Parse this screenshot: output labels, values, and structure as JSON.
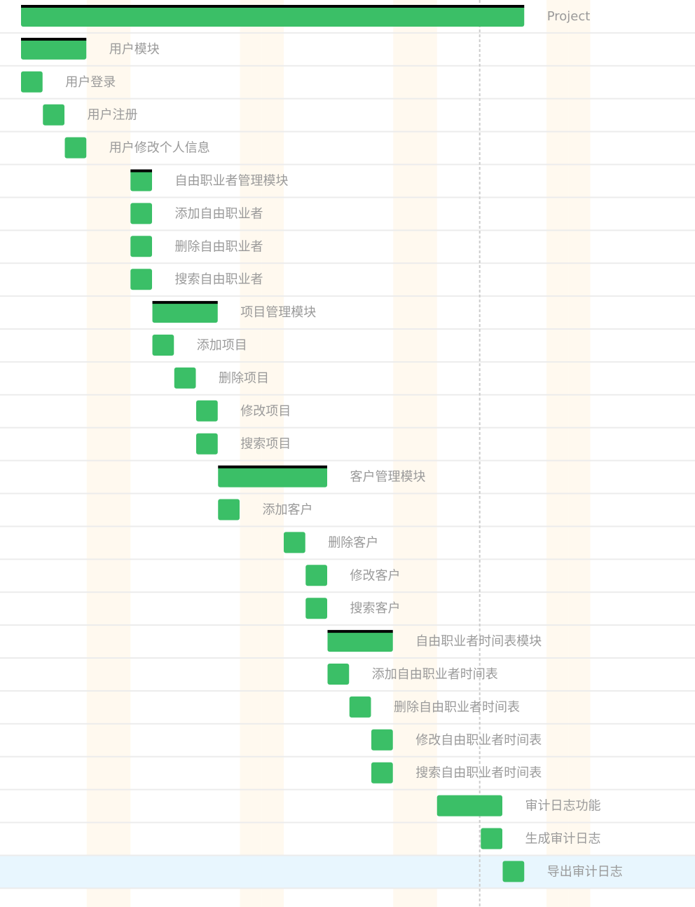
{
  "chart_data": {
    "type": "gantt",
    "time_unit": "day",
    "weekend_day_indices": [
      3,
      4,
      10,
      11,
      17,
      18,
      24,
      25
    ],
    "today_day_index": 20.95,
    "selected_task": "导出审计日志",
    "colors": {
      "bar": "#3bbf67",
      "progress_top": "#000000",
      "weekend": "#fff9ef",
      "selected_row": "#e8f6fe",
      "row_line": "#ececec",
      "today_line": "#cccccc",
      "label": "#9a9a9a"
    },
    "tasks": [
      {
        "name": "Project",
        "start": 0,
        "duration": 23,
        "group": true
      },
      {
        "name": "用户模块",
        "start": 0,
        "duration": 3,
        "group": true
      },
      {
        "name": "用户登录",
        "start": 0,
        "duration": 1,
        "group": false
      },
      {
        "name": "用户注册",
        "start": 1,
        "duration": 1,
        "group": false
      },
      {
        "name": "用户修改个人信息",
        "start": 2,
        "duration": 1,
        "group": false
      },
      {
        "name": "自由职业者管理模块",
        "start": 5,
        "duration": 1,
        "group": true
      },
      {
        "name": "添加自由职业者",
        "start": 5,
        "duration": 1,
        "group": false
      },
      {
        "name": "删除自由职业者",
        "start": 5,
        "duration": 1,
        "group": false
      },
      {
        "name": "搜索自由职业者",
        "start": 5,
        "duration": 1,
        "group": false
      },
      {
        "name": "项目管理模块",
        "start": 6,
        "duration": 3,
        "group": true
      },
      {
        "name": "添加项目",
        "start": 6,
        "duration": 1,
        "group": false
      },
      {
        "name": "删除项目",
        "start": 7,
        "duration": 1,
        "group": false
      },
      {
        "name": "修改项目",
        "start": 8,
        "duration": 1,
        "group": false
      },
      {
        "name": "搜索项目",
        "start": 8,
        "duration": 1,
        "group": false
      },
      {
        "name": "客户管理模块",
        "start": 9,
        "duration": 5,
        "group": true
      },
      {
        "name": "添加客户",
        "start": 9,
        "duration": 1,
        "group": false
      },
      {
        "name": "删除客户",
        "start": 12,
        "duration": 1,
        "group": false
      },
      {
        "name": "修改客户",
        "start": 13,
        "duration": 1,
        "group": false
      },
      {
        "name": "搜索客户",
        "start": 13,
        "duration": 1,
        "group": false
      },
      {
        "name": "自由职业者时间表模块",
        "start": 14,
        "duration": 3,
        "group": true
      },
      {
        "name": "添加自由职业者时间表",
        "start": 14,
        "duration": 1,
        "group": false
      },
      {
        "name": "删除自由职业者时间表",
        "start": 15,
        "duration": 1,
        "group": false
      },
      {
        "name": "修改自由职业者时间表",
        "start": 16,
        "duration": 1,
        "group": false
      },
      {
        "name": "搜索自由职业者时间表",
        "start": 16,
        "duration": 1,
        "group": false
      },
      {
        "name": "审计日志功能",
        "start": 19,
        "duration": 3,
        "group": false
      },
      {
        "name": "生成审计日志",
        "start": 21,
        "duration": 1,
        "group": false
      },
      {
        "name": "导出审计日志",
        "start": 22,
        "duration": 1,
        "group": false
      }
    ]
  }
}
